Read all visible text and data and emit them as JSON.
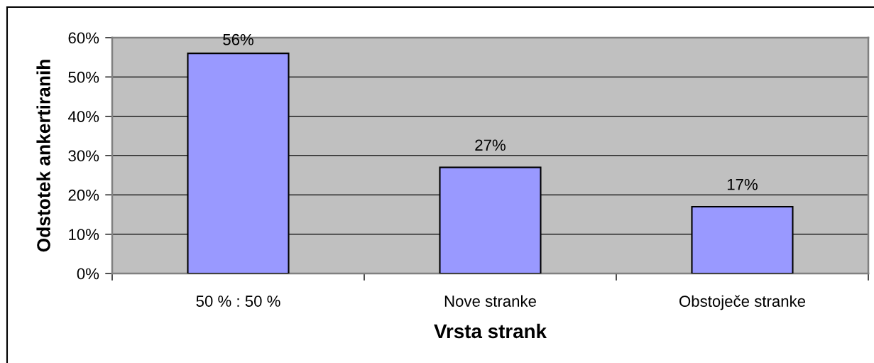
{
  "chart_data": {
    "type": "bar",
    "xlabel": "Vrsta strank",
    "ylabel": "Odstotek ankertiranih",
    "categories": [
      "50 % : 50 %",
      "Nove stranke",
      "Obstoječe stranke"
    ],
    "values": [
      56,
      27,
      17
    ],
    "color": "#9999ff",
    "value_labels": [
      "56%",
      "27%",
      "17%"
    ],
    "ylim": [
      0,
      60
    ],
    "yticks": [
      {
        "value": 0,
        "label": "0%"
      },
      {
        "value": 10,
        "label": "10%"
      },
      {
        "value": 20,
        "label": "20%"
      },
      {
        "value": 30,
        "label": "30%"
      },
      {
        "value": 40,
        "label": "40%"
      },
      {
        "value": 50,
        "label": "50%"
      },
      {
        "value": 60,
        "label": "60%"
      }
    ],
    "grid": "y",
    "legend": false
  }
}
